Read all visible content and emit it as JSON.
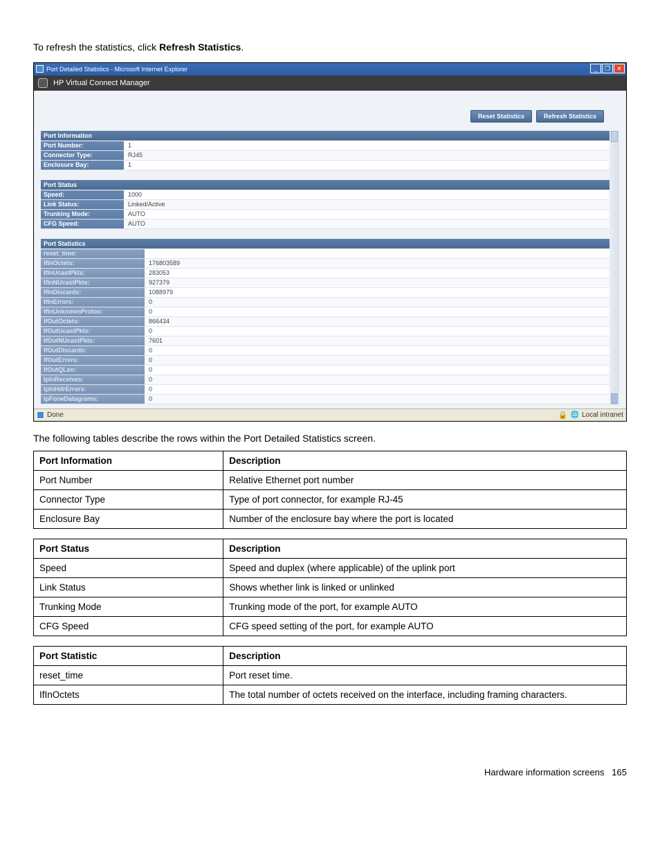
{
  "intro": {
    "prefix": "To refresh the statistics, click ",
    "bold": "Refresh Statistics",
    "suffix": "."
  },
  "screenshot": {
    "windowTitle": "Port Detailed Statistics - Microsoft Internet Explorer",
    "appTitle": "HP Virtual Connect Manager",
    "buttons": {
      "reset": "Reset Statistics",
      "refresh": "Refresh Statistics"
    },
    "sections": {
      "portInfo": {
        "header": "Port Information",
        "rows": [
          {
            "k": "Port Number:",
            "v": "1"
          },
          {
            "k": "Connector Type:",
            "v": "RJ45"
          },
          {
            "k": "Enclosure Bay:",
            "v": "1"
          }
        ]
      },
      "portStatus": {
        "header": "Port Status",
        "rows": [
          {
            "k": "Speed:",
            "v": "1000"
          },
          {
            "k": "Link Status:",
            "v": "Linked/Active"
          },
          {
            "k": "Trunking Mode:",
            "v": "AUTO"
          },
          {
            "k": "CFG Speed:",
            "v": "AUTO"
          }
        ]
      },
      "portStats": {
        "header": "Port Statistics",
        "rows": [
          {
            "k": "reset_time:",
            "v": ""
          },
          {
            "k": "IfInOctets:",
            "v": "176803589"
          },
          {
            "k": "IfInUcastPkts:",
            "v": "283053"
          },
          {
            "k": "IfInNUcastPkts:",
            "v": "927379"
          },
          {
            "k": "IfInDiscards:",
            "v": "1088979"
          },
          {
            "k": "IfInErrors:",
            "v": "0"
          },
          {
            "k": "IfInUnknownProtos:",
            "v": "0"
          },
          {
            "k": "IfOutOctets:",
            "v": "866434"
          },
          {
            "k": "IfOutUcastPkts:",
            "v": "0"
          },
          {
            "k": "IfOutNUcastPkts:",
            "v": "7601"
          },
          {
            "k": "IfOutDiscards:",
            "v": "0"
          },
          {
            "k": "IfOutErrors:",
            "v": "0"
          },
          {
            "k": "IfOutQLen:",
            "v": "0"
          },
          {
            "k": "IpInReceives:",
            "v": "0"
          },
          {
            "k": "IpInHdrErrors:",
            "v": "0"
          },
          {
            "k": "IpForwDatagrams:",
            "v": "0"
          }
        ]
      }
    },
    "statusbar": {
      "done": "Done",
      "zone": "Local intranet"
    }
  },
  "descIntro": "The following tables describe the rows within the Port Detailed Statistics screen.",
  "tables": {
    "t1": {
      "h1": "Port Information",
      "h2": "Description",
      "rows": [
        {
          "a": "Port Number",
          "b": "Relative Ethernet port number"
        },
        {
          "a": "Connector Type",
          "b": "Type of port connector, for example RJ-45"
        },
        {
          "a": "Enclosure Bay",
          "b": "Number of the enclosure bay where the port is located"
        }
      ]
    },
    "t2": {
      "h1": "Port Status",
      "h2": "Description",
      "rows": [
        {
          "a": "Speed",
          "b": "Speed and duplex (where applicable) of the uplink port"
        },
        {
          "a": "Link Status",
          "b": "Shows whether link is linked or unlinked"
        },
        {
          "a": "Trunking Mode",
          "b": "Trunking mode of the port, for example AUTO"
        },
        {
          "a": "CFG Speed",
          "b": "CFG speed setting of the port, for example AUTO"
        }
      ]
    },
    "t3": {
      "h1": "Port Statistic",
      "h2": "Description",
      "rows": [
        {
          "a": "reset_time",
          "b": "Port reset time."
        },
        {
          "a": "IfInOctets",
          "b": "The total number of octets received on the interface, including framing characters."
        }
      ]
    }
  },
  "footer": {
    "label": "Hardware information screens",
    "page": "165"
  }
}
